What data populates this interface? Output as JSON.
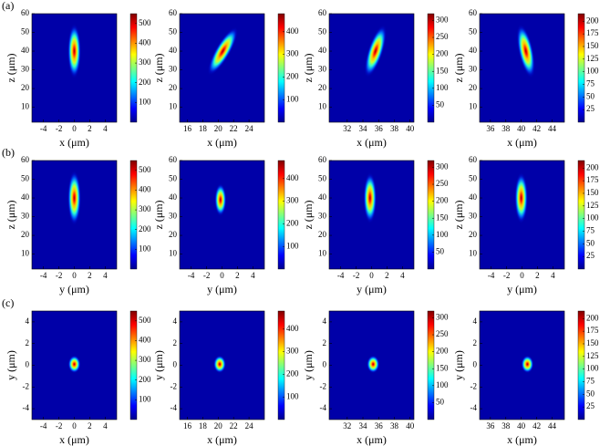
{
  "row_labels": [
    "(a)",
    "(b)",
    "(c)"
  ],
  "chart_data": [
    {
      "type": "heatmap",
      "xlabel": "x (μm)",
      "ylabel": "z (μm)",
      "xlim": [
        -5.5,
        5.5
      ],
      "xticks": [
        -4,
        -2,
        0,
        2,
        4
      ],
      "ylim": [
        2,
        60
      ],
      "yticks": [
        10,
        20,
        30,
        40,
        50,
        60
      ],
      "clim": [
        0,
        550
      ],
      "cticks": [
        100,
        200,
        300,
        400,
        500
      ],
      "spot": {
        "x": 0,
        "y": 40,
        "rx": 0.9,
        "ry": 15,
        "angle": 0
      }
    },
    {
      "type": "heatmap",
      "xlabel": "x (μm)",
      "ylabel": "z (μm)",
      "xlim": [
        15,
        26
      ],
      "xticks": [
        16,
        18,
        20,
        22,
        24
      ],
      "ylim": [
        2,
        60
      ],
      "yticks": [
        10,
        20,
        30,
        40,
        50,
        60
      ],
      "clim": [
        0,
        480
      ],
      "cticks": [
        100,
        200,
        300,
        400
      ],
      "spot": {
        "x": 20.6,
        "y": 40,
        "rx": 1.0,
        "ry": 15,
        "angle": 30
      }
    },
    {
      "type": "heatmap",
      "xlabel": "x (μm)",
      "ylabel": "z (μm)",
      "xlim": [
        29.7,
        40.5
      ],
      "xticks": [
        32,
        34,
        36,
        38,
        40
      ],
      "ylim": [
        2,
        60
      ],
      "yticks": [
        10,
        20,
        30,
        40,
        50,
        60
      ],
      "clim": [
        0,
        320
      ],
      "cticks": [
        50,
        100,
        150,
        200,
        250,
        300
      ],
      "spot": {
        "x": 35.6,
        "y": 40,
        "rx": 1.0,
        "ry": 15,
        "angle": 18
      }
    },
    {
      "type": "heatmap",
      "xlabel": "x (μm)",
      "ylabel": "z (μm)",
      "xlim": [
        34.6,
        45.6
      ],
      "xticks": [
        36,
        38,
        40,
        42,
        44
      ],
      "ylim": [
        2,
        60
      ],
      "yticks": [
        10,
        20,
        30,
        40,
        50,
        60
      ],
      "clim": [
        0,
        215
      ],
      "cticks": [
        25,
        50,
        75,
        100,
        125,
        150,
        175,
        200
      ],
      "spot": {
        "x": 40.6,
        "y": 40,
        "rx": 1.0,
        "ry": 15,
        "angle": -12
      }
    },
    {
      "type": "heatmap",
      "xlabel": "y (μm)",
      "ylabel": "z (μm)",
      "xlim": [
        -5.5,
        5.5
      ],
      "xticks": [
        -4,
        -2,
        0,
        2,
        4
      ],
      "ylim": [
        2,
        60
      ],
      "yticks": [
        10,
        20,
        30,
        40,
        50,
        60
      ],
      "clim": [
        0,
        550
      ],
      "cticks": [
        100,
        200,
        300,
        400,
        500
      ],
      "spot": {
        "x": 0,
        "y": 40,
        "rx": 0.9,
        "ry": 15,
        "angle": 0
      }
    },
    {
      "type": "heatmap",
      "xlabel": "y (μm)",
      "ylabel": "z (μm)",
      "xlim": [
        -5.5,
        5.5
      ],
      "xticks": [
        -4,
        -2,
        0,
        2,
        4
      ],
      "ylim": [
        2,
        60
      ],
      "yticks": [
        10,
        20,
        30,
        40,
        50,
        60
      ],
      "clim": [
        0,
        480
      ],
      "cticks": [
        100,
        200,
        300,
        400
      ],
      "spot": {
        "x": -0.2,
        "y": 39,
        "rx": 0.8,
        "ry": 9,
        "angle": 0
      }
    },
    {
      "type": "heatmap",
      "xlabel": "y (μm)",
      "ylabel": "z (μm)",
      "xlim": [
        -5.5,
        5.5
      ],
      "xticks": [
        -4,
        -2,
        0,
        2,
        4
      ],
      "ylim": [
        2,
        60
      ],
      "yticks": [
        10,
        20,
        30,
        40,
        50,
        60
      ],
      "clim": [
        0,
        320
      ],
      "cticks": [
        50,
        100,
        150,
        200,
        250,
        300
      ],
      "spot": {
        "x": -0.2,
        "y": 40,
        "rx": 0.9,
        "ry": 14,
        "angle": 0
      }
    },
    {
      "type": "heatmap",
      "xlabel": "y (μm)",
      "ylabel": "z (μm)",
      "xlim": [
        -5.5,
        5.5
      ],
      "xticks": [
        -4,
        -2,
        0,
        2,
        4
      ],
      "ylim": [
        2,
        60
      ],
      "yticks": [
        10,
        20,
        30,
        40,
        50,
        60
      ],
      "clim": [
        0,
        215
      ],
      "cticks": [
        25,
        50,
        75,
        100,
        125,
        150,
        175,
        200
      ],
      "spot": {
        "x": -0.1,
        "y": 40,
        "rx": 0.9,
        "ry": 14,
        "angle": 0
      }
    },
    {
      "type": "heatmap",
      "xlabel": "x (μm)",
      "ylabel": "y (μm)",
      "xlim": [
        -5.5,
        5.5
      ],
      "xticks": [
        -4,
        -2,
        0,
        2,
        4
      ],
      "ylim": [
        -5,
        5
      ],
      "yticks": [
        -4,
        -2,
        0,
        2,
        4
      ],
      "clim": [
        0,
        550
      ],
      "cticks": [
        100,
        200,
        300,
        400,
        500
      ],
      "spot": {
        "x": 0,
        "y": 0.1,
        "rx": 0.85,
        "ry": 0.85,
        "angle": 0
      }
    },
    {
      "type": "heatmap",
      "xlabel": "x (μm)",
      "ylabel": "y (μm)",
      "xlim": [
        15,
        26
      ],
      "xticks": [
        16,
        18,
        20,
        22,
        24
      ],
      "ylim": [
        -5,
        5
      ],
      "yticks": [
        -4,
        -2,
        0,
        2,
        4
      ],
      "clim": [
        0,
        480
      ],
      "cticks": [
        100,
        200,
        300,
        400
      ],
      "spot": {
        "x": 20.2,
        "y": 0.1,
        "rx": 0.85,
        "ry": 0.85,
        "angle": 0
      }
    },
    {
      "type": "heatmap",
      "xlabel": "x (μm)",
      "ylabel": "y (μm)",
      "xlim": [
        29.7,
        40.5
      ],
      "xticks": [
        32,
        34,
        36,
        38,
        40
      ],
      "ylim": [
        -5,
        5
      ],
      "yticks": [
        -4,
        -2,
        0,
        2,
        4
      ],
      "clim": [
        0,
        320
      ],
      "cticks": [
        50,
        100,
        150,
        200,
        250,
        300
      ],
      "spot": {
        "x": 35.3,
        "y": 0.1,
        "rx": 0.85,
        "ry": 0.85,
        "angle": 0
      }
    },
    {
      "type": "heatmap",
      "xlabel": "x (μm)",
      "ylabel": "y (μm)",
      "xlim": [
        34.6,
        45.6
      ],
      "xticks": [
        36,
        38,
        40,
        42,
        44
      ],
      "ylim": [
        -5,
        5
      ],
      "yticks": [
        -4,
        -2,
        0,
        2,
        4
      ],
      "clim": [
        0,
        215
      ],
      "cticks": [
        25,
        50,
        75,
        100,
        125,
        150,
        175,
        200
      ],
      "spot": {
        "x": 40.8,
        "y": 0.1,
        "rx": 0.85,
        "ry": 0.85,
        "angle": 0
      }
    }
  ]
}
